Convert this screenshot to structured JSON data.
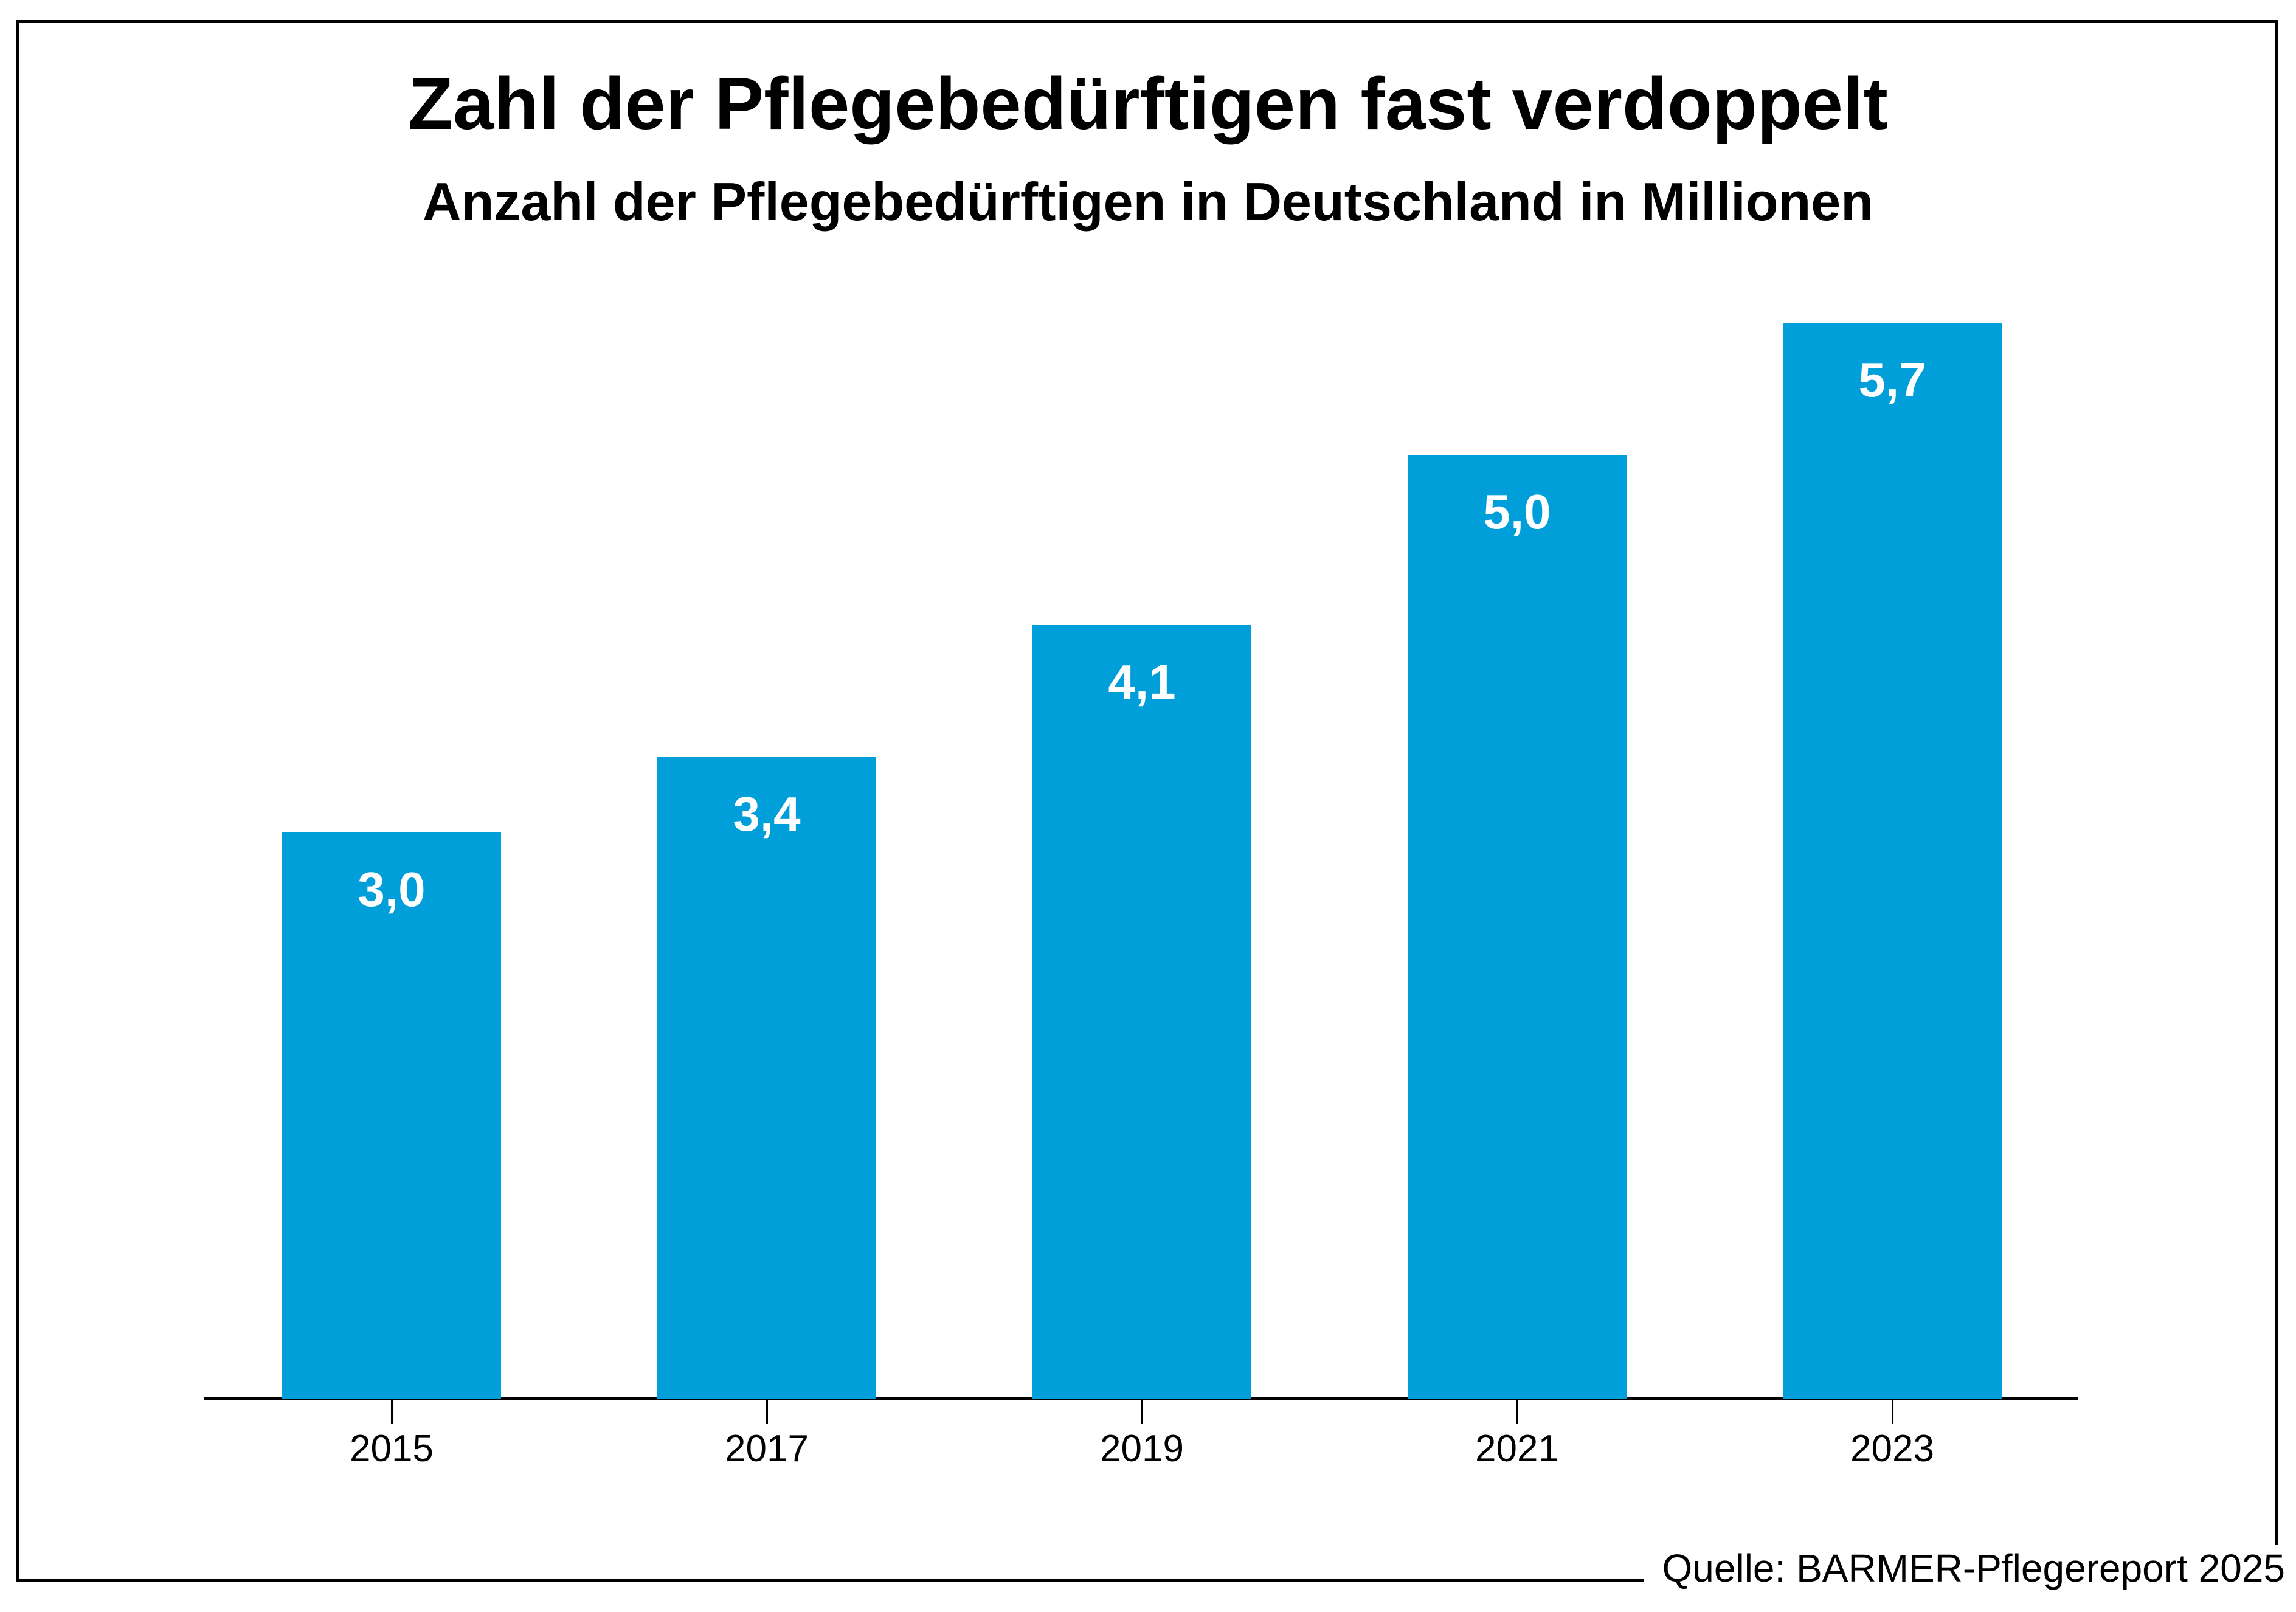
{
  "chart_data": {
    "type": "bar",
    "title": "Zahl der Pflegebedürftigen fast verdoppelt",
    "subtitle": "Anzahl der Pflegebedürftigen in Deutschland in Millionen",
    "categories": [
      "2015",
      "2017",
      "2019",
      "2021",
      "2023"
    ],
    "values": [
      3.0,
      3.4,
      4.1,
      5.0,
      5.7
    ],
    "value_labels": [
      "3,0",
      "3,4",
      "4,1",
      "5,0",
      "5,7"
    ],
    "ylim": [
      0,
      7.4
    ],
    "grid": false,
    "legend": false,
    "source": "Quelle: BARMER-Pflegereport 2025"
  },
  "colors": {
    "bar": "#009FD9",
    "value_label": "#FFFFFF",
    "text": "#000000",
    "frame": "#000000"
  }
}
